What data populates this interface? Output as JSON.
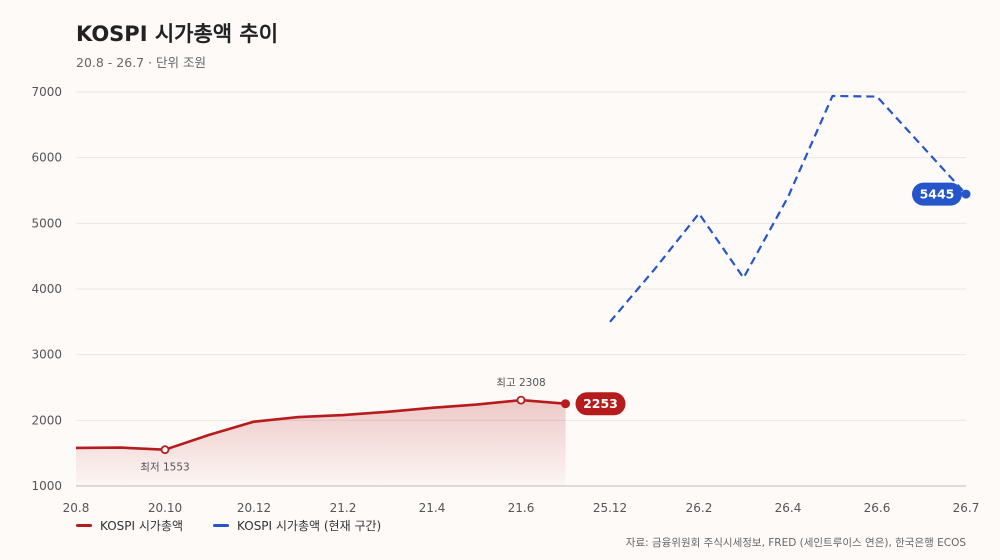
{
  "title": "KOSPI 시가총액 추이",
  "subtitle": "20.8 - 26.7 · 단위 조원",
  "source": "자료: 금융위원회 주식시세정보, FRED (세인트루이스 연은), 한국은행 ECOS",
  "chart_data": {
    "type": "line",
    "title": "KOSPI 시가총액 추이",
    "ylim": [
      1000,
      7000
    ],
    "yticks": [
      1000,
      2000,
      3000,
      4000,
      5000,
      6000,
      7000
    ],
    "xticks": [
      "20.8",
      "20.10",
      "20.12",
      "21.2",
      "21.4",
      "21.6",
      "25.12",
      "26.2",
      "26.4",
      "26.6",
      "26.7"
    ],
    "grid": true,
    "legend_position": "bottom-left",
    "series": [
      {
        "name": "KOSPI 시가총액",
        "color": "#b71c1c",
        "style": "solid-area",
        "x": [
          "20.8",
          "20.9",
          "20.10",
          "20.11",
          "20.12",
          "21.1",
          "21.2",
          "21.3",
          "21.4",
          "21.5",
          "21.6",
          "21.7"
        ],
        "values": [
          1580,
          1585,
          1553,
          1780,
          1980,
          2050,
          2080,
          2130,
          2190,
          2240,
          2308,
          2253
        ]
      },
      {
        "name": "KOSPI 시가총액 (현재 구간)",
        "color": "#2456c9",
        "style": "dashed",
        "x": [
          "25.12",
          "26.1",
          "26.2",
          "26.3",
          "26.4",
          "26.5",
          "26.6",
          "26.7"
        ],
        "values": [
          3500,
          4300,
          5150,
          4170,
          5400,
          6940,
          6930,
          5445
        ]
      }
    ],
    "annotations": [
      {
        "text": "최고 2308",
        "series": 0,
        "x": "21.6"
      },
      {
        "text": "최저 1553",
        "series": 0,
        "x": "20.10"
      }
    ],
    "end_labels": [
      {
        "series": 0,
        "text": "2253"
      },
      {
        "series": 1,
        "text": "5445"
      }
    ]
  }
}
